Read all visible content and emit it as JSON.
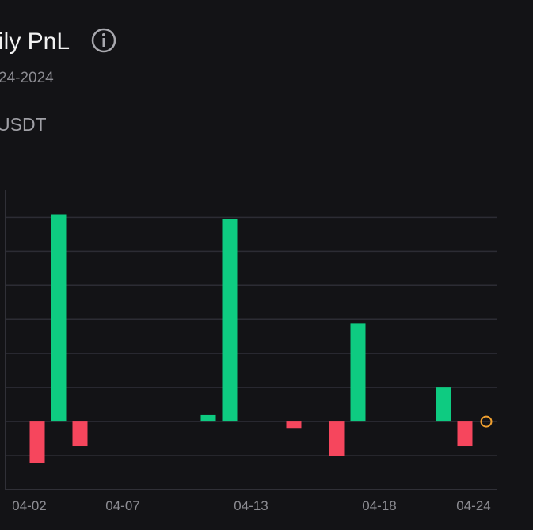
{
  "header": {
    "title": "ily PnL",
    "date_range": "24-2024",
    "unit": "USDT"
  },
  "chart_data": {
    "type": "bar",
    "categories": [
      "04-02",
      null,
      null,
      null,
      "04-07",
      null,
      null,
      null,
      null,
      null,
      "04-13",
      null,
      null,
      null,
      null,
      null,
      "04-18",
      null,
      null,
      null,
      null,
      "04-24"
    ],
    "values": [
      -1.23,
      6.09,
      -0.72,
      null,
      null,
      null,
      null,
      null,
      0.19,
      5.95,
      null,
      null,
      -0.19,
      null,
      -1.0,
      2.88,
      null,
      null,
      null,
      1.0,
      -0.72,
      0
    ],
    "positive_color": "#0ecb81",
    "negative_color": "#f6465d",
    "zero_marker_color": "#f0a030",
    "ylim": [
      -2,
      6.8
    ],
    "yticks": [
      -1,
      0,
      1,
      2,
      3,
      4,
      5,
      6
    ],
    "grid": true
  }
}
